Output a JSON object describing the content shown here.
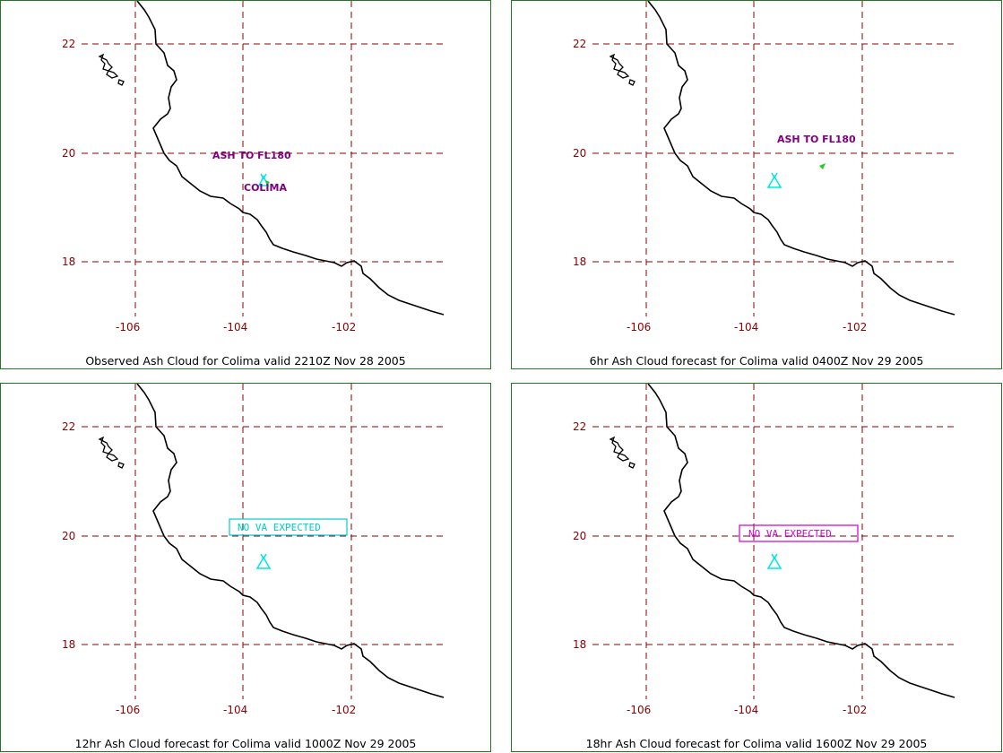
{
  "colors": {
    "border": "#1f7a1f",
    "grid": "#8b0000",
    "coast": "#000000",
    "volcano": "#00e5e5",
    "ash_text": "#800080",
    "ash_cloud": "#22cc22",
    "no_va_observed_panel_box": "#00cccc",
    "no_va_magenta_box": "#cc00cc"
  },
  "axes": {
    "lat_ticks": [
      "22",
      "20",
      "18"
    ],
    "lon_ticks": [
      "-106",
      "-104",
      "-102"
    ]
  },
  "panels": [
    {
      "caption": "Observed Ash Cloud for Colima valid 2210Z Nov 28 2005",
      "annotations": {
        "ash_label": "ASH TO FL180",
        "volcano_label": "COLIMA"
      }
    },
    {
      "caption": "6hr Ash Cloud forecast for Colima valid 0400Z Nov 29 2005",
      "annotations": {
        "ash_label": "ASH TO FL180"
      }
    },
    {
      "caption": "12hr Ash Cloud forecast for Colima valid 1000Z Nov 29 2005",
      "annotations": {
        "box_label": "NO VA EXPECTED",
        "box_color": "cyan"
      }
    },
    {
      "caption": "18hr Ash Cloud forecast for Colima valid 1600Z Nov 29 2005",
      "annotations": {
        "box_label": "NO VA EXPECTED",
        "box_color": "magenta"
      }
    }
  ]
}
